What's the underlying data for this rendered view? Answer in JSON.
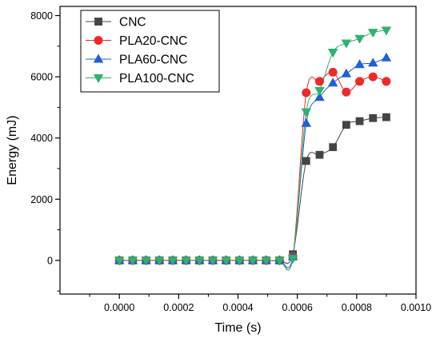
{
  "chart_data": {
    "type": "line",
    "title": "",
    "xlabel": "Time (s)",
    "ylabel": "Energy (mJ)",
    "xlim": [
      -0.0002,
      0.001
    ],
    "ylim": [
      -1100,
      8300
    ],
    "x_ticks": [
      0.0,
      0.0002,
      0.0004,
      0.0006,
      0.0008,
      0.001
    ],
    "x_tick_labels": [
      "0.0000",
      "0.0002",
      "0.0004",
      "0.0006",
      "0.0008",
      "0.0010"
    ],
    "y_ticks": [
      0,
      2000,
      4000,
      6000,
      8000
    ],
    "y_tick_labels": [
      "0",
      "2000",
      "4000",
      "6000",
      "8000"
    ],
    "grid": false,
    "legend_position": "top-left",
    "x": [
      0.0,
      4.5e-05,
      9e-05,
      0.000135,
      0.00018,
      0.000225,
      0.00027,
      0.000315,
      0.00036,
      0.000405,
      0.00045,
      0.000495,
      0.00054,
      0.000585,
      0.00063,
      0.000675,
      0.00072,
      0.000765,
      0.00081,
      0.000855,
      0.0009
    ],
    "series": [
      {
        "name": "CNC",
        "marker": "square",
        "color": "#444444",
        "values": [
          0,
          0,
          0,
          0,
          0,
          0,
          0,
          0,
          0,
          0,
          0,
          0,
          0,
          200,
          3250,
          3450,
          3700,
          4430,
          4550,
          4650,
          4680
        ]
      },
      {
        "name": "PLA20-CNC",
        "marker": "circle",
        "color": "#ee2929",
        "values": [
          0,
          0,
          0,
          0,
          0,
          0,
          0,
          0,
          0,
          0,
          0,
          0,
          0,
          120,
          5480,
          5850,
          6150,
          5500,
          5850,
          6000,
          5850
        ]
      },
      {
        "name": "PLA60-CNC",
        "marker": "triangle-up",
        "color": "#1f5fd8",
        "values": [
          0,
          0,
          0,
          0,
          0,
          0,
          0,
          0,
          0,
          0,
          0,
          0,
          0,
          120,
          4480,
          5330,
          5800,
          6100,
          6400,
          6450,
          6620
        ]
      },
      {
        "name": "PLA100-CNC",
        "marker": "triangle-down",
        "color": "#2db36b",
        "values": [
          0,
          0,
          0,
          0,
          0,
          0,
          0,
          0,
          0,
          0,
          0,
          0,
          0,
          60,
          4850,
          5550,
          6800,
          7100,
          7250,
          7450,
          7520
        ]
      }
    ]
  }
}
